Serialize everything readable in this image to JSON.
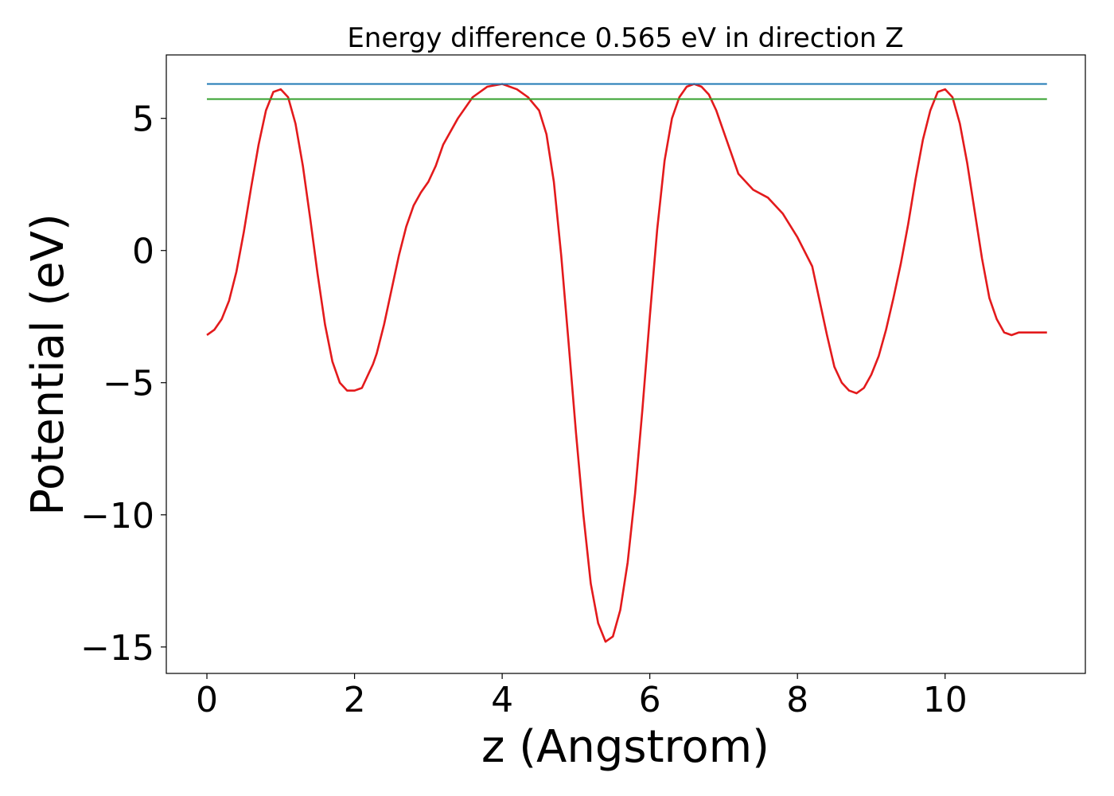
{
  "chart_data": {
    "type": "line",
    "title": "Energy difference 0.565 eV in direction Z",
    "xlabel": "z (Angstrom)",
    "ylabel": "Potential (eV)",
    "xlim": [
      -0.55,
      11.9
    ],
    "ylim": [
      -16.0,
      7.4
    ],
    "xticks": [
      0,
      2,
      4,
      6,
      8,
      10
    ],
    "yticks": [
      5,
      0,
      -5,
      -10,
      -15
    ],
    "ytick_labels": [
      "5",
      "0",
      "−5",
      "−10",
      "−15"
    ],
    "grid": false,
    "series": [
      {
        "color": "#e31a1c",
        "x": [
          0.0,
          0.1,
          0.2,
          0.3,
          0.4,
          0.5,
          0.6,
          0.7,
          0.8,
          0.9,
          1.0,
          1.1,
          1.2,
          1.3,
          1.4,
          1.5,
          1.6,
          1.7,
          1.8,
          1.9,
          2.0,
          2.1,
          2.2,
          2.25,
          2.3,
          2.4,
          2.5,
          2.6,
          2.7,
          2.8,
          2.9,
          3.0,
          3.1,
          3.2,
          3.4,
          3.6,
          3.8,
          4.0,
          4.2,
          4.35,
          4.5,
          4.6,
          4.7,
          4.8,
          4.9,
          5.0,
          5.1,
          5.2,
          5.3,
          5.4,
          5.5,
          5.6,
          5.7,
          5.8,
          5.9,
          6.0,
          6.1,
          6.2,
          6.3,
          6.4,
          6.5,
          6.6,
          6.7,
          6.8,
          6.9,
          7.0,
          7.1,
          7.2,
          7.4,
          7.6,
          7.8,
          8.0,
          8.2,
          8.3,
          8.4,
          8.5,
          8.6,
          8.7,
          8.8,
          8.9,
          9.0,
          9.1,
          9.2,
          9.3,
          9.4,
          9.5,
          9.6,
          9.7,
          9.8,
          9.9,
          10.0,
          10.1,
          10.2,
          10.3,
          10.4,
          10.5,
          10.6,
          10.7,
          10.8,
          10.9,
          11.0,
          11.1,
          11.2,
          11.3,
          11.38
        ],
        "y": [
          -3.2,
          -3.0,
          -2.6,
          -1.9,
          -0.8,
          0.7,
          2.4,
          4.0,
          5.3,
          6.0,
          6.1,
          5.8,
          4.8,
          3.2,
          1.2,
          -0.9,
          -2.8,
          -4.2,
          -5.0,
          -5.3,
          -5.3,
          -5.2,
          -4.6,
          -4.3,
          -3.9,
          -2.8,
          -1.5,
          -0.2,
          0.9,
          1.7,
          2.2,
          2.6,
          3.2,
          4.0,
          5.0,
          5.8,
          6.2,
          6.3,
          6.1,
          5.8,
          5.3,
          4.4,
          2.6,
          -0.2,
          -3.5,
          -6.9,
          -10.0,
          -12.6,
          -14.1,
          -14.8,
          -14.6,
          -13.6,
          -11.8,
          -9.2,
          -6.0,
          -2.5,
          0.8,
          3.4,
          5.0,
          5.8,
          6.2,
          6.3,
          6.2,
          5.9,
          5.3,
          4.5,
          3.7,
          2.9,
          2.3,
          2.0,
          1.4,
          0.5,
          -0.6,
          -1.9,
          -3.2,
          -4.4,
          -5.0,
          -5.3,
          -5.4,
          -5.2,
          -4.7,
          -4.0,
          -3.0,
          -1.8,
          -0.5,
          1.0,
          2.7,
          4.2,
          5.3,
          6.0,
          6.1,
          5.8,
          4.8,
          3.3,
          1.5,
          -0.3,
          -1.8,
          -2.6,
          -3.1,
          -3.2,
          -3.1,
          -3.1,
          -3.1,
          -3.1,
          -3.1
        ]
      },
      {
        "color": "#1f78b4",
        "x": [
          0.0,
          11.38
        ],
        "y": [
          6.3,
          6.3
        ]
      },
      {
        "color": "#33a02c",
        "x": [
          0.0,
          11.38
        ],
        "y": [
          5.73,
          5.73
        ]
      }
    ]
  }
}
